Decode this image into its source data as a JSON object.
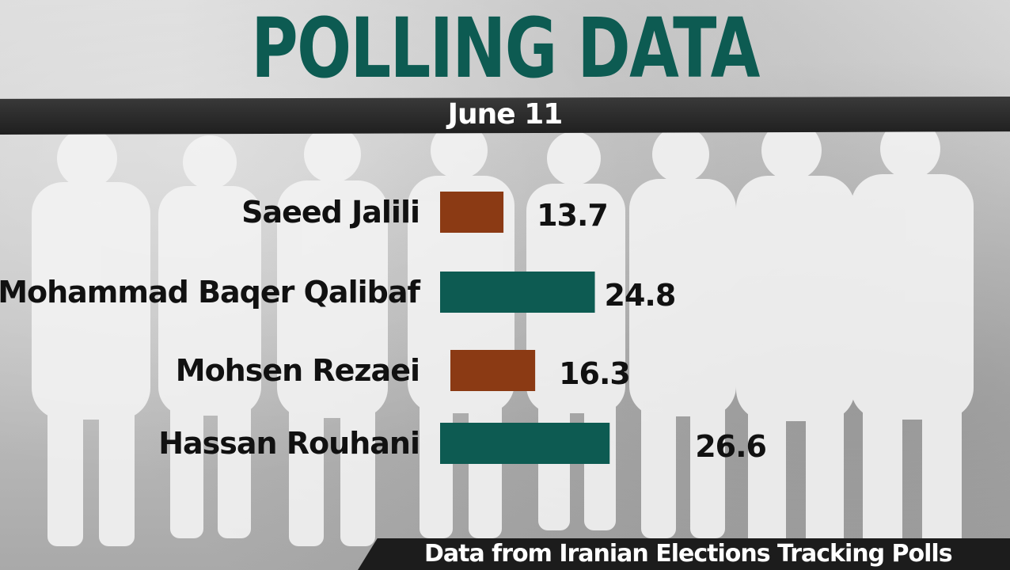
{
  "header": {
    "title": "POLLING DATA",
    "date": "June 11"
  },
  "footer": {
    "source": "Data from Iranian Elections Tracking Polls"
  },
  "colors": {
    "title": "#0d5b52",
    "bar_teal": "#0d5b52",
    "bar_orange": "#8b3a14"
  },
  "chart_data": {
    "type": "bar",
    "orientation": "horizontal",
    "title": "POLLING DATA",
    "subtitle": "June 11",
    "categories": [
      "Saeed Jalili",
      "Mohammad Baqer Qalibaf",
      "Mohsen Rezaei",
      "Hassan Rouhani"
    ],
    "values": [
      13.7,
      24.8,
      16.3,
      26.6
    ],
    "bar_colors": [
      "#8b3a14",
      "#0d5b52",
      "#8b3a14",
      "#0d5b52"
    ],
    "data_labels": [
      "13.7",
      "24.8",
      "16.3",
      "26.6"
    ],
    "source": "Data from Iranian Elections Tracking Polls",
    "grid": false,
    "legend": "none"
  }
}
